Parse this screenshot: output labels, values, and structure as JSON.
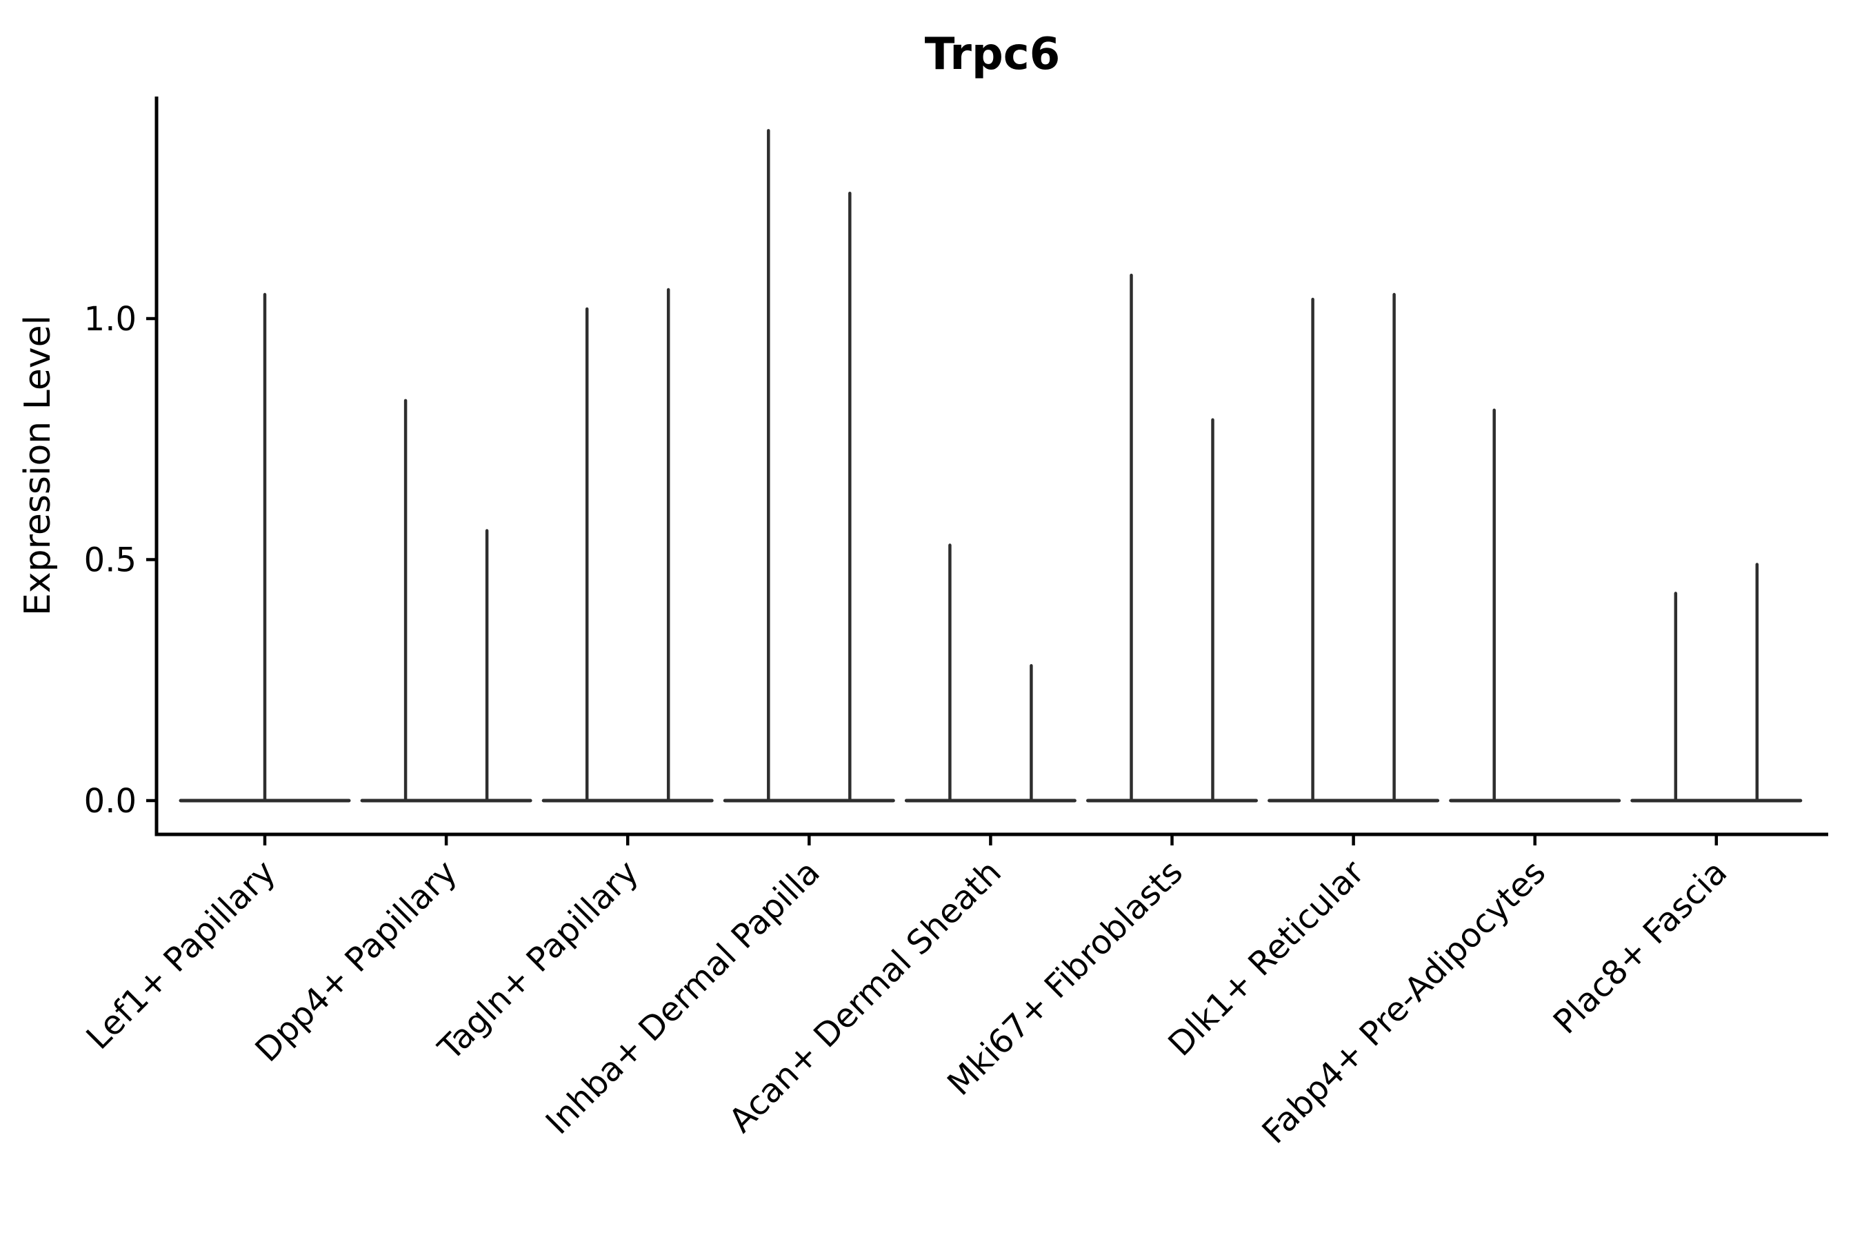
{
  "chart_data": {
    "type": "violin",
    "title": "Trpc6",
    "xlabel": "",
    "ylabel": "Expression Level",
    "ytick_labels": [
      "0.0",
      "0.5",
      "1.0"
    ],
    "yticks": [
      0.0,
      0.5,
      1.0
    ],
    "ylim": [
      -0.07,
      1.46
    ],
    "grid": false,
    "legend": "none",
    "spines": [
      "left",
      "bottom"
    ],
    "line_color": "#2e2e2e",
    "axis_color": "#000000",
    "background_color": "#ffffff",
    "categories": [
      "Lef1+ Papillary",
      "Dpp4+ Papillary",
      "Tagln+ Papillary",
      "Inhba+ Dermal Papilla",
      "Acan+ Dermal Sheath",
      "Mki67+ Fibroblasts",
      "Dlk1+ Reticular",
      "Fabp4+ Pre-Adipocytes",
      "Plac8+ Fascia"
    ],
    "violins": [
      {
        "label": "Lef1+ Papillary",
        "baseline": 0.0,
        "spikes": [
          {
            "position": "center",
            "max_expression": 1.05
          }
        ]
      },
      {
        "label": "Dpp4+ Papillary",
        "baseline": 0.0,
        "spikes": [
          {
            "position": "left",
            "max_expression": 0.83
          },
          {
            "position": "right",
            "max_expression": 0.56
          }
        ]
      },
      {
        "label": "Tagln+ Papillary",
        "baseline": 0.0,
        "spikes": [
          {
            "position": "left",
            "max_expression": 1.02
          },
          {
            "position": "right",
            "max_expression": 1.06
          }
        ]
      },
      {
        "label": "Inhba+ Dermal Papilla",
        "baseline": 0.0,
        "spikes": [
          {
            "position": "left",
            "max_expression": 1.39
          },
          {
            "position": "right",
            "max_expression": 1.26
          }
        ]
      },
      {
        "label": "Acan+ Dermal Sheath",
        "baseline": 0.0,
        "spikes": [
          {
            "position": "left",
            "max_expression": 0.53
          },
          {
            "position": "right",
            "max_expression": 0.28
          }
        ]
      },
      {
        "label": "Mki67+ Fibroblasts",
        "baseline": 0.0,
        "spikes": [
          {
            "position": "left",
            "max_expression": 1.09
          },
          {
            "position": "right",
            "max_expression": 0.79
          }
        ]
      },
      {
        "label": "Dlk1+ Reticular",
        "baseline": 0.0,
        "spikes": [
          {
            "position": "left",
            "max_expression": 1.04
          },
          {
            "position": "right",
            "max_expression": 1.05
          }
        ]
      },
      {
        "label": "Fabp4+ Pre-Adipocytes",
        "baseline": 0.0,
        "spikes": [
          {
            "position": "left",
            "max_expression": 0.81
          }
        ]
      },
      {
        "label": "Plac8+ Fascia",
        "baseline": 0.0,
        "spikes": [
          {
            "position": "left",
            "max_expression": 0.43
          },
          {
            "position": "right",
            "max_expression": 0.49
          }
        ]
      }
    ]
  }
}
